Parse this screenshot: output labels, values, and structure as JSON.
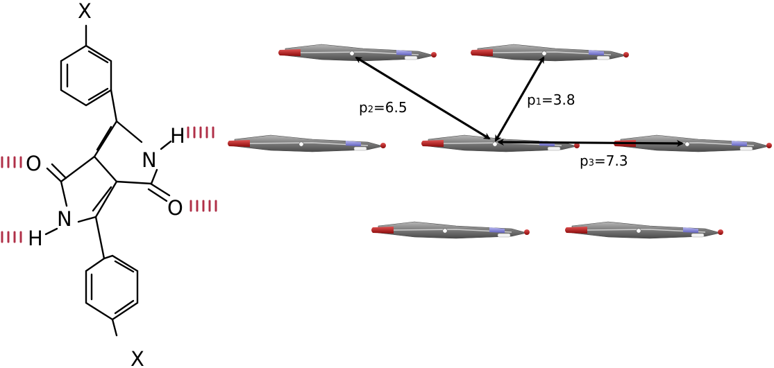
{
  "molecule": {
    "atoms": {
      "x_top": "X",
      "x_bottom": "X",
      "n_upper": "N",
      "n_lower": "N",
      "h_upper": "H",
      "h_lower": "H",
      "o_left": "O",
      "o_right": "O"
    }
  },
  "packing": {
    "p1": {
      "symbol": "p",
      "subscript": "1",
      "value": "=3.8"
    },
    "p2": {
      "symbol": "p",
      "subscript": "2",
      "value": "=6.5"
    },
    "p3": {
      "symbol": "p",
      "subscript": "3",
      "value": "=7.3"
    }
  },
  "colors": {
    "bond": "#000000",
    "hbond": "#b03048",
    "carbon": "#7a7a7a",
    "oxygen": "#c41010",
    "nitrogen": "#8080d8",
    "hydrogen": "#f0f0f0"
  }
}
